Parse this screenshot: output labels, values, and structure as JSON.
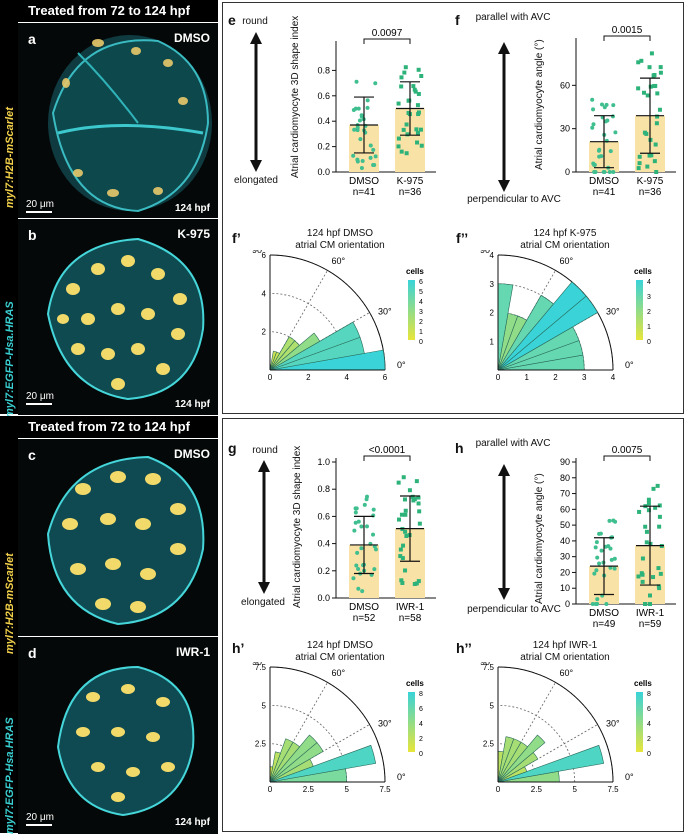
{
  "top": {
    "banner": "Treated from 72 to 124 hpf",
    "side_label_1": "myl7:H2B-mScarlet",
    "side_label_2": "myl7:EGFP-Hsa.HRAS",
    "panel_a": {
      "letter": "a",
      "condition": "DMSO",
      "stage": "124 hpf",
      "scale": "20 μm"
    },
    "panel_b": {
      "letter": "b",
      "condition": "K-975",
      "stage": "124 hpf",
      "scale": "20 μm"
    },
    "panel_e": {
      "letter": "e",
      "top_label": "round",
      "bottom_label": "elongated"
    },
    "panel_f": {
      "letter": "f",
      "top_label": "parallel with AVC",
      "bottom_label": "perpendicular to AVC"
    },
    "panel_f1": {
      "letter": "f’",
      "title": "124 hpf DMSO",
      "subtitle": "atrial CM orientation",
      "angle_labels": [
        "90°",
        "60°",
        "30°",
        "0°"
      ],
      "legend_title": "cells"
    },
    "panel_f2": {
      "letter": "f’’",
      "title": "124 hpf K-975",
      "subtitle": "atrial CM orientation",
      "angle_labels": [
        "90°",
        "60°",
        "30°",
        "0°"
      ],
      "legend_title": "cells"
    }
  },
  "bottom": {
    "banner": "Treated from 72 to 124 hpf",
    "side_label_1": "myl7:H2B-mScarlet",
    "side_label_2": "myl7:EGFP-Hsa.HRAS",
    "panel_c": {
      "letter": "c",
      "condition": "DMSO"
    },
    "panel_d": {
      "letter": "d",
      "condition": "IWR-1",
      "stage": "124 hpf",
      "scale": "20 μm"
    },
    "panel_g": {
      "letter": "g",
      "top_label": "round",
      "bottom_label": "elongated"
    },
    "panel_h": {
      "letter": "h",
      "top_label": "parallel with AVC",
      "bottom_label": "perpendicular to AVC"
    },
    "panel_h1": {
      "letter": "h’",
      "title": "124 hpf DMSO",
      "subtitle": "atrial CM orientation",
      "angle_labels": [
        "90°",
        "60°",
        "30°",
        "0°"
      ],
      "legend_title": "cells"
    },
    "panel_h2": {
      "letter": "h’’",
      "title": "124 hpf IWR-1",
      "subtitle": "atrial CM orientation",
      "angle_labels": [
        "90°",
        "60°",
        "30°",
        "0°"
      ],
      "legend_title": "cells"
    }
  },
  "colors": {
    "bar_fill": "#f9e2a6",
    "dmso_points": "#3fbf8f",
    "treat_points": "#2db37a",
    "rose_low": "#e8e53a",
    "rose_high": "#39d3d8",
    "cyan": "#3ad0d2",
    "yellow": "#f2d04a"
  },
  "chart_data": [
    {
      "id": "e",
      "type": "bar",
      "ylabel": "Atrial cardiomyocyte 3D shape index",
      "ylim": [
        0,
        1.0
      ],
      "yticks": [
        0.0,
        0.2,
        0.4,
        0.6,
        0.8
      ],
      "categories": [
        "DMSO",
        "K-975"
      ],
      "category_n": [
        "n=41",
        "n=36"
      ],
      "values": [
        0.37,
        0.5
      ],
      "sd": [
        0.22,
        0.21
      ],
      "pvalue": "0.0097"
    },
    {
      "id": "f",
      "type": "bar",
      "ylabel": "Atrial cardiomyocyte angle (°)",
      "ylim": [
        0,
        90
      ],
      "yticks": [
        0,
        30,
        60
      ],
      "categories": [
        "DMSO",
        "K-975"
      ],
      "category_n": [
        "n=41",
        "n=36"
      ],
      "values": [
        21,
        39
      ],
      "sd": [
        18,
        26
      ],
      "pvalue": "0.0015"
    },
    {
      "id": "g",
      "type": "bar",
      "ylabel": "Atrial cardiomyocyte 3D shape index",
      "ylim": [
        0,
        1.0
      ],
      "yticks": [
        0.0,
        0.2,
        0.4,
        0.6,
        0.8,
        1.0
      ],
      "categories": [
        "DMSO",
        "IWR-1"
      ],
      "category_n": [
        "n=52",
        "n=58"
      ],
      "values": [
        0.39,
        0.51
      ],
      "sd": [
        0.21,
        0.24
      ],
      "pvalue": "<0.0001"
    },
    {
      "id": "h",
      "type": "bar",
      "ylabel": "Atrial cardiomyocyte angle (°)",
      "ylim": [
        0,
        90
      ],
      "yticks": [
        0,
        10,
        20,
        30,
        40,
        50,
        60,
        70,
        80,
        90
      ],
      "categories": [
        "DMSO",
        "IWR-1"
      ],
      "category_n": [
        "n=49",
        "n=59"
      ],
      "values": [
        24,
        37
      ],
      "sd": [
        18,
        25
      ],
      "pvalue": "0.0075"
    },
    {
      "id": "f1",
      "type": "rose",
      "rmax": 6,
      "rticks": [
        0,
        2,
        4,
        6
      ],
      "legend_ticks": [
        6,
        5,
        4,
        3,
        2,
        1,
        0
      ],
      "bins_deg": [
        0,
        10,
        20,
        30,
        40,
        50,
        60,
        70,
        80
      ],
      "counts": [
        6,
        5,
        5,
        3,
        2,
        2,
        1,
        1,
        0
      ]
    },
    {
      "id": "f2",
      "type": "rose",
      "rmax": 4,
      "rticks": [
        0,
        1,
        2,
        3,
        4
      ],
      "legend_ticks": [
        4,
        3,
        2,
        1,
        0
      ],
      "bins_deg": [
        0,
        10,
        20,
        30,
        40,
        50,
        60,
        70,
        80
      ],
      "counts": [
        3,
        3,
        3,
        4,
        4,
        3,
        2,
        2,
        3
      ]
    },
    {
      "id": "h1",
      "type": "rose",
      "rmax": 7.5,
      "rticks": [
        0,
        2.5,
        5.0,
        7.5
      ],
      "legend_ticks": [
        8,
        6,
        4,
        2,
        0
      ],
      "bins_deg": [
        0,
        10,
        20,
        30,
        40,
        50,
        60,
        70,
        80
      ],
      "counts": [
        5,
        7,
        3,
        4,
        4,
        3,
        3,
        2,
        1
      ]
    },
    {
      "id": "h2",
      "type": "rose",
      "rmax": 7.5,
      "rticks": [
        0,
        2.5,
        5.0,
        7.5
      ],
      "legend_ticks": [
        8,
        6,
        4,
        2,
        0
      ],
      "bins_deg": [
        0,
        10,
        20,
        30,
        40,
        50,
        60,
        70,
        80
      ],
      "counts": [
        4,
        7,
        2,
        3,
        4,
        3,
        3,
        3,
        2
      ]
    }
  ]
}
